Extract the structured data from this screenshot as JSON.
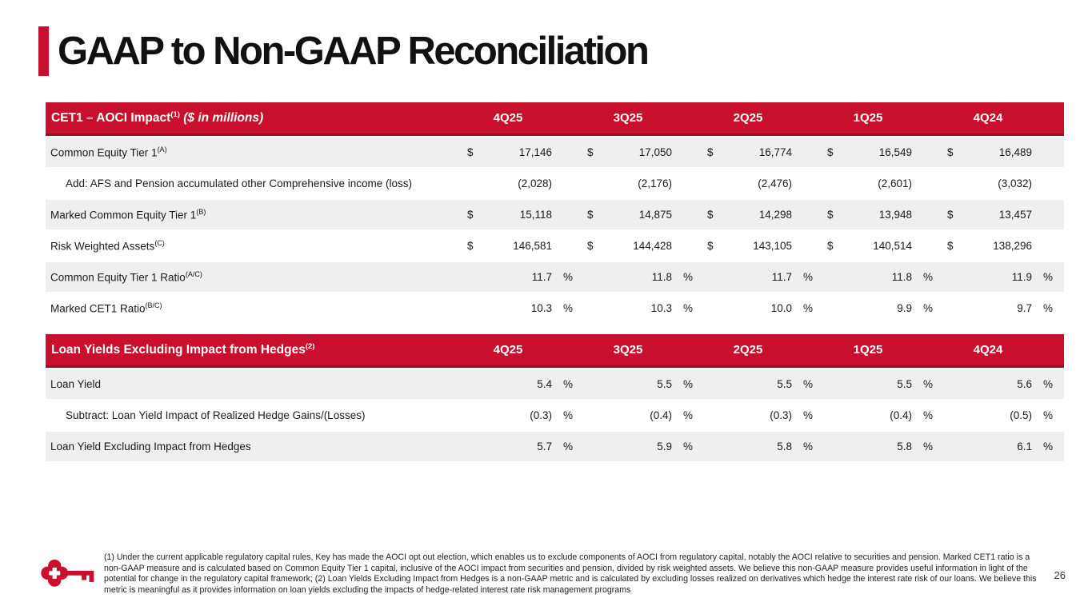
{
  "slide": {
    "title": "GAAP to Non-GAAP Reconciliation",
    "page_number": "26",
    "footnote": "(1) Under the current applicable regulatory capital rules, Key has made the AOCI opt out election, which enables us to exclude components of AOCI from regulatory capital, notably the AOCI relative to securities and pension. Marked CET1 ratio is a non-GAAP measure and is calculated based on Common Equity Tier 1 capital, inclusive of the AOCI impact from securities and pension, divided by risk weighted assets. We believe this non-GAAP measure provides useful information in light of the potential for change in the regulatory capital framework; (2) Loan Yields Excluding Impact from Hedges is a non-GAAP metric and is calculated by excluding losses realized on derivatives which hedge the interest rate risk of our loans. We believe this metric is meaningful as it provides information on loan yields excluding the impacts of hedge-related interest rate risk management programs"
  },
  "colors": {
    "brand_red": "#C8102E",
    "header_border_red": "#951222",
    "row_alt": "#EFEFEF"
  },
  "logo": {
    "name": "key-logo",
    "description": "red key icon"
  },
  "tables": [
    {
      "id": "cet1-aoci",
      "title": "CET1 – AOCI Impact",
      "title_sup": "(1)",
      "title_suffix": " ($ in millions)",
      "columns": [
        "4Q25",
        "3Q25",
        "2Q25",
        "1Q25",
        "4Q24"
      ],
      "rows": [
        {
          "label": "Common Equity Tier 1",
          "sup": "(A)",
          "indent": false,
          "prefix": "$",
          "suffix": "",
          "values": [
            "17,146",
            "17,050",
            "16,774",
            "16,549",
            "16,489"
          ]
        },
        {
          "label": "Add: AFS and Pension accumulated other Comprehensive income (loss)",
          "sup": "",
          "indent": true,
          "prefix": "",
          "suffix": "",
          "values": [
            "(2,028)",
            "(2,176)",
            "(2,476)",
            "(2,601)",
            "(3,032)"
          ]
        },
        {
          "label": "Marked Common Equity Tier 1",
          "sup": "(B)",
          "indent": false,
          "prefix": "$",
          "suffix": "",
          "values": [
            "15,118",
            "14,875",
            "14,298",
            "13,948",
            "13,457"
          ]
        },
        {
          "label": "Risk Weighted Assets",
          "sup": "(C)",
          "indent": false,
          "prefix": "$",
          "suffix": "",
          "values": [
            "146,581",
            "144,428",
            "143,105",
            "140,514",
            "138,296"
          ]
        },
        {
          "label": "Common Equity Tier 1 Ratio",
          "sup": "(A/C)",
          "indent": false,
          "prefix": "",
          "suffix": "%",
          "values": [
            "11.7",
            "11.8",
            "11.7",
            "11.8",
            "11.9"
          ]
        },
        {
          "label": "Marked CET1 Ratio",
          "sup": "(B/C)",
          "indent": false,
          "prefix": "",
          "suffix": "%",
          "values": [
            "10.3",
            "10.3",
            "10.0",
            "9.9",
            "9.7"
          ]
        }
      ]
    },
    {
      "id": "loan-yields",
      "title": "Loan Yields Excluding Impact from Hedges",
      "title_sup": "(2)",
      "title_suffix": "",
      "columns": [
        "4Q25",
        "3Q25",
        "2Q25",
        "1Q25",
        "4Q24"
      ],
      "rows": [
        {
          "label": "Loan Yield",
          "sup": "",
          "indent": false,
          "prefix": "",
          "suffix": "%",
          "values": [
            "5.4",
            "5.5",
            "5.5",
            "5.5",
            "5.6"
          ]
        },
        {
          "label": "Subtract: Loan Yield Impact of Realized Hedge Gains/(Losses)",
          "sup": "",
          "indent": true,
          "prefix": "",
          "suffix": "%",
          "values": [
            "(0.3)",
            "(0.4)",
            "(0.3)",
            "(0.4)",
            "(0.5)"
          ]
        },
        {
          "label": "Loan Yield Excluding Impact from Hedges",
          "sup": "",
          "indent": false,
          "prefix": "",
          "suffix": "%",
          "values": [
            "5.7",
            "5.9",
            "5.8",
            "5.8",
            "6.1"
          ]
        }
      ]
    }
  ]
}
